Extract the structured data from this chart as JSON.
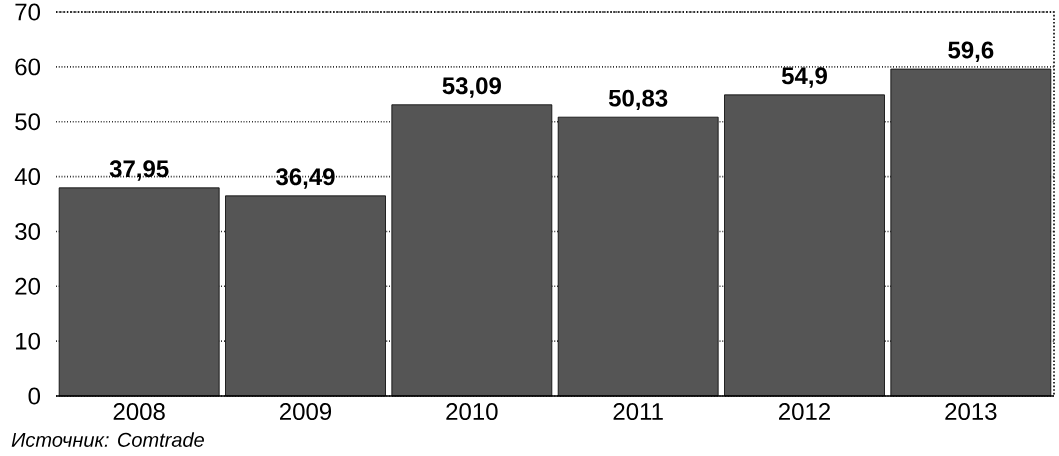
{
  "chart_data": {
    "type": "bar",
    "categories": [
      "2008",
      "2009",
      "2010",
      "2011",
      "2012",
      "2013"
    ],
    "values": [
      37.95,
      36.49,
      53.09,
      50.83,
      54.9,
      59.6
    ],
    "value_labels": [
      "37,95",
      "36,49",
      "53,09",
      "50,83",
      "54,9",
      "59,6"
    ],
    "color": "#555555",
    "ylim": [
      0,
      70
    ],
    "yticks": [
      0,
      10,
      20,
      30,
      40,
      50,
      60,
      70
    ],
    "grid": "y",
    "annotations": [
      "Источник: Comtrade"
    ]
  }
}
